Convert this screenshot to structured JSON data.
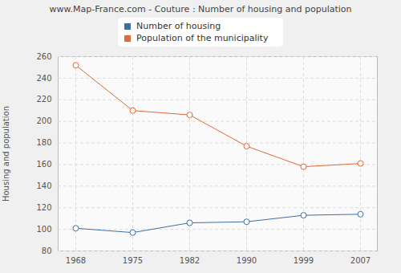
{
  "chart_data": {
    "type": "line",
    "title": "www.Map-France.com - Couture : Number of housing and population",
    "y_label": "Housing and population",
    "categories": [
      "1968",
      "1975",
      "1982",
      "1990",
      "1999",
      "2007"
    ],
    "series": [
      {
        "name": "Number of housing",
        "color": "#3e6fa3",
        "values": [
          101,
          97,
          106,
          107,
          113,
          114
        ]
      },
      {
        "name": "Population of the municipality",
        "color": "#e0693c",
        "values": [
          252,
          210,
          206,
          177,
          158,
          161
        ]
      }
    ],
    "ylim": [
      80,
      260
    ],
    "yticks": [
      80,
      100,
      120,
      140,
      160,
      180,
      200,
      220,
      240,
      260
    ],
    "grid": true,
    "legend": "top",
    "marker": "circle"
  }
}
